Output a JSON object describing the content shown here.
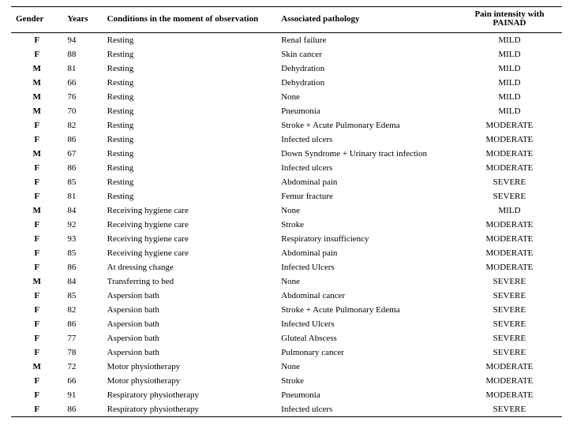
{
  "table": {
    "columns": [
      {
        "key": "gender",
        "label": "Gender"
      },
      {
        "key": "years",
        "label": "Years"
      },
      {
        "key": "conditions",
        "label": "Conditions in the moment of observation"
      },
      {
        "key": "pathology",
        "label": "Associated pathology"
      },
      {
        "key": "pain",
        "label": "Pain intensity with PAINAD"
      }
    ],
    "rows": [
      {
        "gender": "F",
        "years": "94",
        "conditions": "Resting",
        "pathology": "Renal failure",
        "pain": "MILD"
      },
      {
        "gender": "F",
        "years": "88",
        "conditions": "Resting",
        "pathology": "Skin cancer",
        "pain": "MILD"
      },
      {
        "gender": "M",
        "years": "81",
        "conditions": "Resting",
        "pathology": "Dehydration",
        "pain": "MILD"
      },
      {
        "gender": "M",
        "years": "66",
        "conditions": "Resting",
        "pathology": "Dehydration",
        "pain": "MILD"
      },
      {
        "gender": "M",
        "years": "76",
        "conditions": "Resting",
        "pathology": "None",
        "pain": "MILD"
      },
      {
        "gender": "M",
        "years": "70",
        "conditions": "Resting",
        "pathology": "Pneumonia",
        "pain": "MILD"
      },
      {
        "gender": "F",
        "years": "82",
        "conditions": "Resting",
        "pathology": "Stroke + Acute Pulmonary Edema",
        "pain": "MODERATE"
      },
      {
        "gender": "F",
        "years": "86",
        "conditions": "Resting",
        "pathology": "Infected ulcers",
        "pain": "MODERATE"
      },
      {
        "gender": "M",
        "years": "67",
        "conditions": "Resting",
        "pathology": "Down Syndrome + Urinary tract infection",
        "pain": "MODERATE"
      },
      {
        "gender": "F",
        "years": "86",
        "conditions": "Resting",
        "pathology": "Infected ulcers",
        "pain": "MODERATE"
      },
      {
        "gender": "F",
        "years": "85",
        "conditions": "Resting",
        "pathology": "Abdominal pain",
        "pain": "SEVERE"
      },
      {
        "gender": "F",
        "years": "81",
        "conditions": "Resting",
        "pathology": "Femur fracture",
        "pain": "SEVERE"
      },
      {
        "gender": "M",
        "years": "84",
        "conditions": "Receiving hygiene care",
        "pathology": "None",
        "pain": "MILD"
      },
      {
        "gender": "F",
        "years": "92",
        "conditions": "Receiving hygiene care",
        "pathology": "Stroke",
        "pain": "MODERATE"
      },
      {
        "gender": "F",
        "years": "93",
        "conditions": "Receiving hygiene care",
        "pathology": "Respiratory insufficiency",
        "pain": "MODERATE"
      },
      {
        "gender": "F",
        "years": "85",
        "conditions": "Receiving hygiene care",
        "pathology": "Abdominal pain",
        "pain": "MODERATE"
      },
      {
        "gender": "F",
        "years": "86",
        "conditions": "At dressing change",
        "pathology": "Infected Ulcers",
        "pain": "MODERATE"
      },
      {
        "gender": "M",
        "years": "84",
        "conditions": "Transferring to bed",
        "pathology": "None",
        "pain": "SEVERE"
      },
      {
        "gender": "F",
        "years": "85",
        "conditions": "Aspersion bath",
        "pathology": "Abdominal cancer",
        "pain": "SEVERE"
      },
      {
        "gender": "F",
        "years": "82",
        "conditions": "Aspersion bath",
        "pathology": "Stroke + Acute Pulmonary Edema",
        "pain": "SEVERE"
      },
      {
        "gender": "F",
        "years": "86",
        "conditions": "Aspersion bath",
        "pathology": "Infected Ulcers",
        "pain": "SEVERE"
      },
      {
        "gender": "F",
        "years": "77",
        "conditions": "Aspersion bath",
        "pathology": "Gluteal Abscess",
        "pain": "SEVERE"
      },
      {
        "gender": "F",
        "years": "78",
        "conditions": "Aspersion bath",
        "pathology": "Pulmonary cancer",
        "pain": "SEVERE"
      },
      {
        "gender": "M",
        "years": "72",
        "conditions": "Motor physiotherapy",
        "pathology": "None",
        "pain": "MODERATE"
      },
      {
        "gender": "F",
        "years": "66",
        "conditions": "Motor physiotherapy",
        "pathology": "Stroke",
        "pain": "MODERATE"
      },
      {
        "gender": "F",
        "years": "91",
        "conditions": "Respiratory physiotherapy",
        "pathology": "Pneumonia",
        "pain": "MODERATE"
      },
      {
        "gender": "F",
        "years": "86",
        "conditions": "Respiratory physiotherapy",
        "pathology": "Infected ulcers",
        "pain": "SEVERE"
      }
    ]
  }
}
